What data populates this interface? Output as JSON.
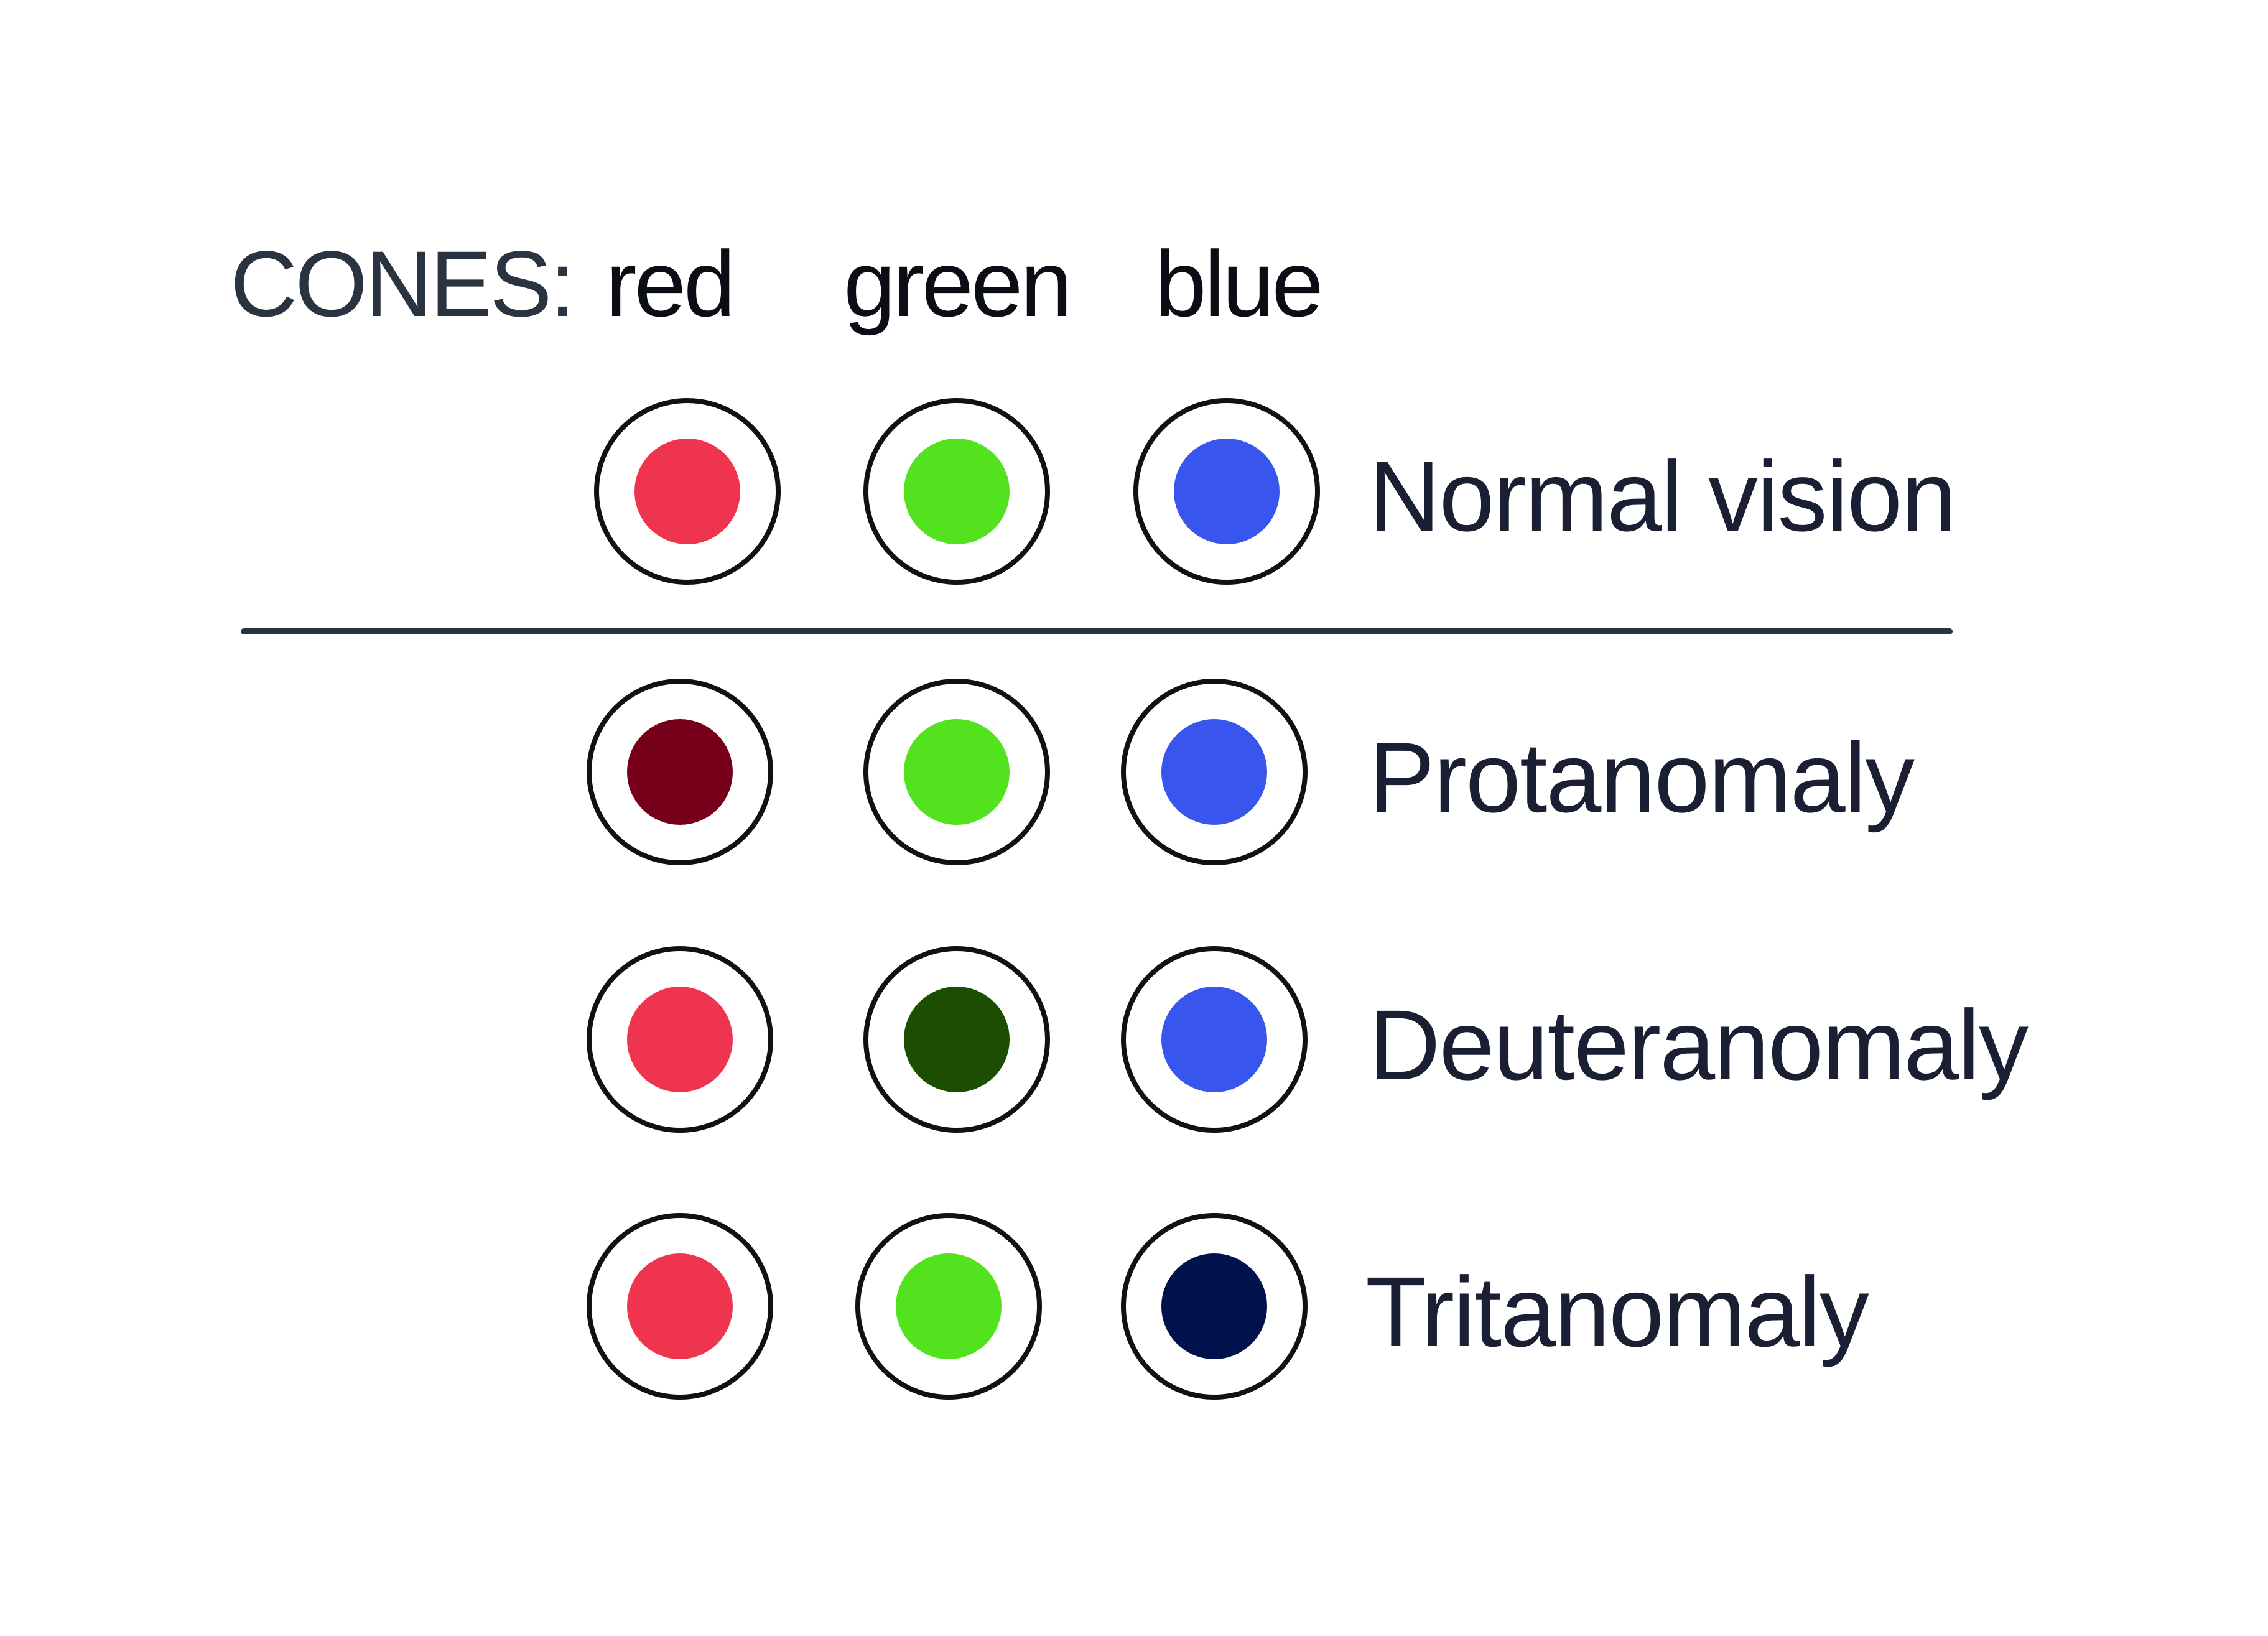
{
  "header": {
    "prefix": "CONES:",
    "cones": [
      "red",
      "green",
      "blue"
    ]
  },
  "rows": [
    {
      "label": "Normal vision",
      "dots": [
        {
          "cone": "red",
          "color": "#ef344f"
        },
        {
          "cone": "green",
          "color": "#52e21e"
        },
        {
          "cone": "blue",
          "color": "#3855ee"
        }
      ]
    },
    {
      "label": "Protanomaly",
      "dots": [
        {
          "cone": "red",
          "color": "#760019"
        },
        {
          "cone": "green",
          "color": "#52e21e"
        },
        {
          "cone": "blue",
          "color": "#3855ee"
        }
      ]
    },
    {
      "label": "Deuteranomaly",
      "dots": [
        {
          "cone": "red",
          "color": "#ef344f"
        },
        {
          "cone": "green",
          "color": "#1c4e02"
        },
        {
          "cone": "blue",
          "color": "#3855ee"
        }
      ]
    },
    {
      "label": "Tritanomaly",
      "dots": [
        {
          "cone": "red",
          "color": "#ef344f"
        },
        {
          "cone": "green",
          "color": "#52e21e"
        },
        {
          "cone": "blue",
          "color": "#00124b"
        }
      ]
    }
  ],
  "colors": {
    "ring_stroke": "#111111",
    "divider": "#2a3340",
    "header_text": "#2a3340",
    "label_text": "#1a1f33"
  }
}
